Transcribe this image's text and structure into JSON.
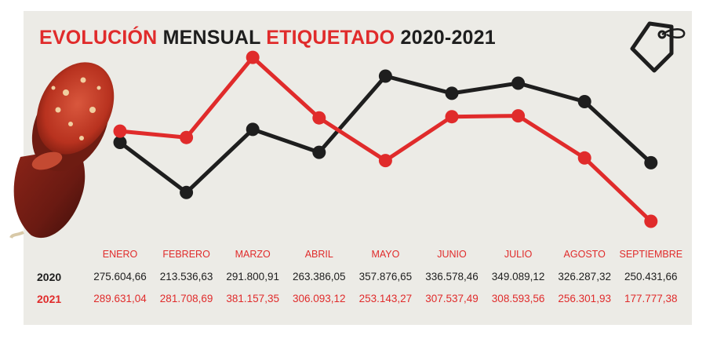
{
  "title": {
    "part1": "EVOLUCIÓN",
    "part2": "MENSUAL",
    "part3": "ETIQUETADO",
    "part4": "2020-2021"
  },
  "colors": {
    "series_2020": "#1e1e1e",
    "series_2021": "#e02b2b",
    "background": "#ecebe6"
  },
  "chart_data": {
    "type": "line",
    "title": "EVOLUCIÓN MENSUAL ETIQUETADO 2020-2021",
    "categories": [
      "ENERO",
      "FEBRERO",
      "MARZO",
      "ABRIL",
      "MAYO",
      "JUNIO",
      "JULIO",
      "AGOSTO",
      "SEPTIEMBRE"
    ],
    "ylim": [
      170000,
      390000
    ],
    "grid": false,
    "series": [
      {
        "name": "2020",
        "values": [
          275604.66,
          213536.63,
          291800.91,
          263386.05,
          357876.65,
          336578.46,
          349089.12,
          326287.32,
          250431.66
        ],
        "labels": [
          "275.604,66",
          "213.536,63",
          "291.800,91",
          "263.386,05",
          "357.876,65",
          "336.578,46",
          "349.089,12",
          "326.287,32",
          "250.431,66"
        ]
      },
      {
        "name": "2021",
        "values": [
          289631.04,
          281708.69,
          381157.35,
          306093.12,
          253143.27,
          307537.49,
          308593.56,
          256301.93,
          177777.38
        ],
        "labels": [
          "289.631,04",
          "281.708,69",
          "381.157,35",
          "306.093,12",
          "253.143,27",
          "307.537,49",
          "308.593,56",
          "256.301,93",
          "177.777,38"
        ]
      }
    ]
  }
}
